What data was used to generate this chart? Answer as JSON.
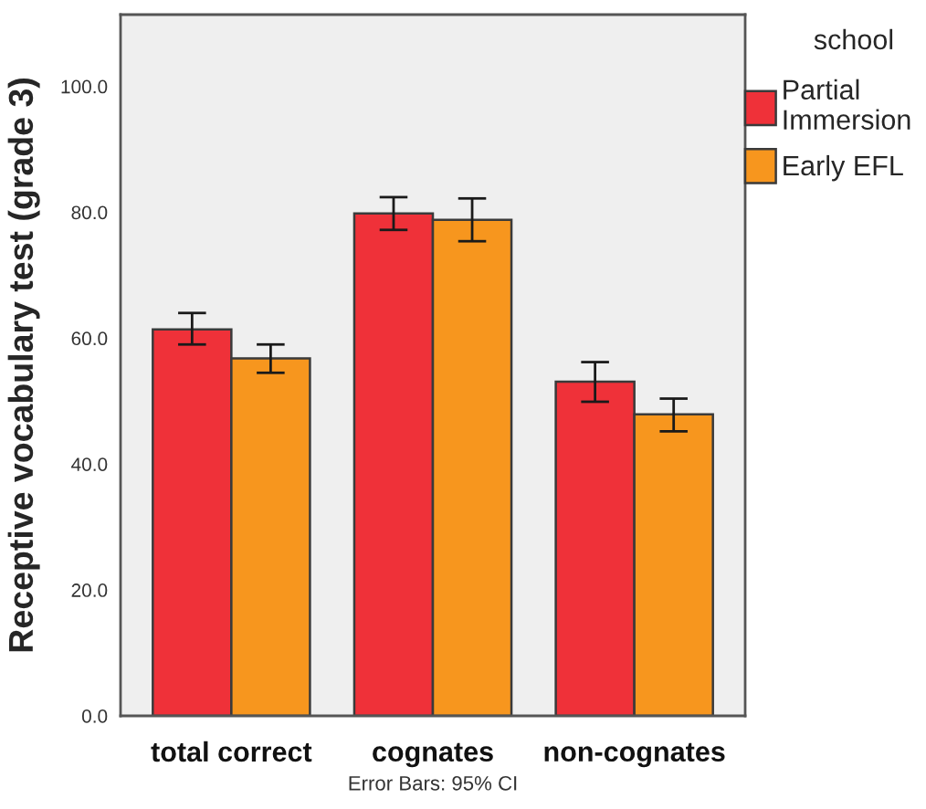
{
  "chart_data": {
    "type": "bar",
    "categories": [
      "total correct",
      "cognates",
      "non-cognates"
    ],
    "series": [
      {
        "name": "Partial Immersion",
        "color": "#ef3139",
        "values": [
          61.4,
          79.8,
          53.1
        ],
        "errors": [
          [
            59.0,
            64.0
          ],
          [
            77.2,
            82.4
          ],
          [
            49.9,
            56.2
          ]
        ]
      },
      {
        "name": "Early EFL",
        "color": "#f7961e",
        "values": [
          56.8,
          78.8,
          47.9
        ],
        "errors": [
          [
            54.5,
            59.0
          ],
          [
            75.4,
            82.2
          ],
          [
            45.2,
            50.4
          ]
        ]
      }
    ],
    "ylabel": "Receptive vocabulary test (grade 3)",
    "legend_title": "school",
    "legend": "top right",
    "ylim": [
      0,
      111.4
    ],
    "yticks": [
      {
        "value": 0,
        "label": "0.0"
      },
      {
        "value": 20,
        "label": "20.0"
      },
      {
        "value": 40,
        "label": "40.0"
      },
      {
        "value": 60,
        "label": "60.0"
      },
      {
        "value": 80,
        "label": "80.0"
      },
      {
        "value": 100,
        "label": "100.0"
      }
    ],
    "grid": false,
    "annotations": [
      "Error Bars: 95% CI"
    ]
  }
}
